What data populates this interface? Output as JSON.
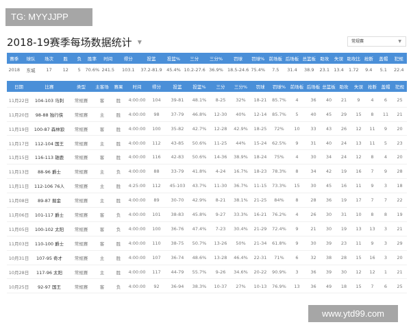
{
  "watermark_top": "TG: MYYJJPP",
  "watermark_bottom": "www.ytd99.com",
  "title": "2018-19赛季每场数据统计",
  "season_select": {
    "value": "常规赛"
  },
  "colors": {
    "header": "#4a8fd8"
  },
  "summary": {
    "headers": [
      "赛季",
      "球队",
      "场次",
      "胜",
      "负",
      "胜率",
      "时间",
      "得分",
      "投篮",
      "投篮%",
      "三分",
      "三分%",
      "罚球",
      "罚球%",
      "前场板",
      "后场板",
      "总篮板",
      "助攻",
      "失误",
      "助攻比",
      "抢断",
      "盖帽",
      "犯规"
    ],
    "values": [
      "2018",
      "东城",
      "17",
      "12",
      "5",
      "70.6%",
      "241.5",
      "103.1",
      "37.2-81.9",
      "45.4%",
      "10.2-27.6",
      "36.9%",
      "18.5-24.6",
      "75.4%",
      "7.5",
      "31.4",
      "38.9",
      "23.1",
      "13.4",
      "1.72",
      "9.4",
      "5.1",
      "22.4"
    ]
  },
  "games": {
    "headers": [
      "日期",
      "比赛",
      "类型",
      "主客场",
      "赛果",
      "时间",
      "得分",
      "投篮",
      "投篮%",
      "三分",
      "三分%",
      "罚球",
      "罚球%",
      "前场板",
      "后场板",
      "总篮板",
      "助攻",
      "失误",
      "抢断",
      "盖帽",
      "犯规"
    ],
    "rows": [
      [
        "11月22日",
        "104-103 马刺",
        "常规赛",
        "客",
        "胜",
        "4:00:00",
        "104",
        "39-81",
        "48.1%",
        "8-25",
        "32%",
        "18-21",
        "85.7%",
        "4",
        "36",
        "40",
        "21",
        "9",
        "4",
        "6",
        "25"
      ],
      [
        "11月20日",
        "98-88 独行侠",
        "常规赛",
        "主",
        "胜",
        "4:00:00",
        "98",
        "37-79",
        "46.8%",
        "12-30",
        "40%",
        "12-14",
        "85.7%",
        "5",
        "40",
        "45",
        "29",
        "15",
        "8",
        "11",
        "21"
      ],
      [
        "11月19日",
        "100-87 森林狼",
        "常规赛",
        "客",
        "胜",
        "4:00:00",
        "100",
        "35-82",
        "42.7%",
        "12-28",
        "42.9%",
        "18-25",
        "72%",
        "10",
        "33",
        "43",
        "26",
        "12",
        "11",
        "9",
        "20"
      ],
      [
        "11月17日",
        "112-104 国王",
        "常规赛",
        "主",
        "胜",
        "4:00:00",
        "112",
        "43-85",
        "50.6%",
        "11-25",
        "44%",
        "15-24",
        "62.5%",
        "9",
        "31",
        "40",
        "24",
        "13",
        "11",
        "5",
        "23"
      ],
      [
        "11月15日",
        "116-113 雄鹿",
        "常规赛",
        "客",
        "胜",
        "4:00:00",
        "116",
        "42-83",
        "50.6%",
        "14-36",
        "38.9%",
        "18-24",
        "75%",
        "4",
        "30",
        "34",
        "24",
        "12",
        "8",
        "4",
        "20"
      ],
      [
        "11月13日",
        "88-96 爵士",
        "常规赛",
        "主",
        "负",
        "4:00:00",
        "88",
        "33-79",
        "41.8%",
        "4-24",
        "16.7%",
        "18-23",
        "78.3%",
        "8",
        "34",
        "42",
        "19",
        "16",
        "7",
        "9",
        "28"
      ],
      [
        "11月11日",
        "112-106 76人",
        "常规赛",
        "主",
        "胜",
        "4:25:00",
        "112",
        "45-103",
        "43.7%",
        "11-30",
        "36.7%",
        "11-15",
        "73.3%",
        "15",
        "30",
        "45",
        "16",
        "11",
        "9",
        "3",
        "18"
      ],
      [
        "11月08日",
        "89-87 掘金",
        "常规赛",
        "主",
        "胜",
        "4:00:00",
        "89",
        "30-70",
        "42.9%",
        "8-21",
        "38.1%",
        "21-25",
        "84%",
        "8",
        "28",
        "36",
        "19",
        "17",
        "7",
        "7",
        "22"
      ],
      [
        "11月06日",
        "101-117 爵士",
        "常规赛",
        "客",
        "负",
        "4:00:00",
        "101",
        "38-83",
        "45.8%",
        "9-27",
        "33.3%",
        "16-21",
        "76.2%",
        "4",
        "26",
        "30",
        "31",
        "10",
        "8",
        "8",
        "19"
      ],
      [
        "11月05日",
        "100-102 太阳",
        "常规赛",
        "客",
        "负",
        "4:00:00",
        "100",
        "36-76",
        "47.4%",
        "7-23",
        "30.4%",
        "21-29",
        "72.4%",
        "9",
        "21",
        "30",
        "19",
        "13",
        "13",
        "3",
        "21"
      ],
      [
        "11月03日",
        "110-100 爵士",
        "常规赛",
        "客",
        "胜",
        "4:00:00",
        "110",
        "38-75",
        "50.7%",
        "13-26",
        "50%",
        "21-34",
        "61.8%",
        "9",
        "30",
        "39",
        "23",
        "11",
        "9",
        "3",
        "29"
      ],
      [
        "10月31日",
        "107-95 奇才",
        "常规赛",
        "主",
        "胜",
        "4:00:00",
        "107",
        "36-74",
        "48.6%",
        "13-28",
        "46.4%",
        "22-31",
        "71%",
        "6",
        "32",
        "38",
        "28",
        "15",
        "16",
        "3",
        "20"
      ],
      [
        "10月28日",
        "117-96 太阳",
        "常规赛",
        "主",
        "胜",
        "4:00:00",
        "117",
        "44-79",
        "55.7%",
        "9-26",
        "34.6%",
        "20-22",
        "90.9%",
        "3",
        "36",
        "39",
        "30",
        "12",
        "12",
        "1",
        "21"
      ],
      [
        "10月25日",
        "92-97 国王",
        "常规赛",
        "客",
        "负",
        "4:00:00",
        "92",
        "36-94",
        "38.3%",
        "10-37",
        "27%",
        "10-13",
        "76.9%",
        "13",
        "36",
        "49",
        "18",
        "15",
        "7",
        "6",
        "25"
      ]
    ]
  }
}
